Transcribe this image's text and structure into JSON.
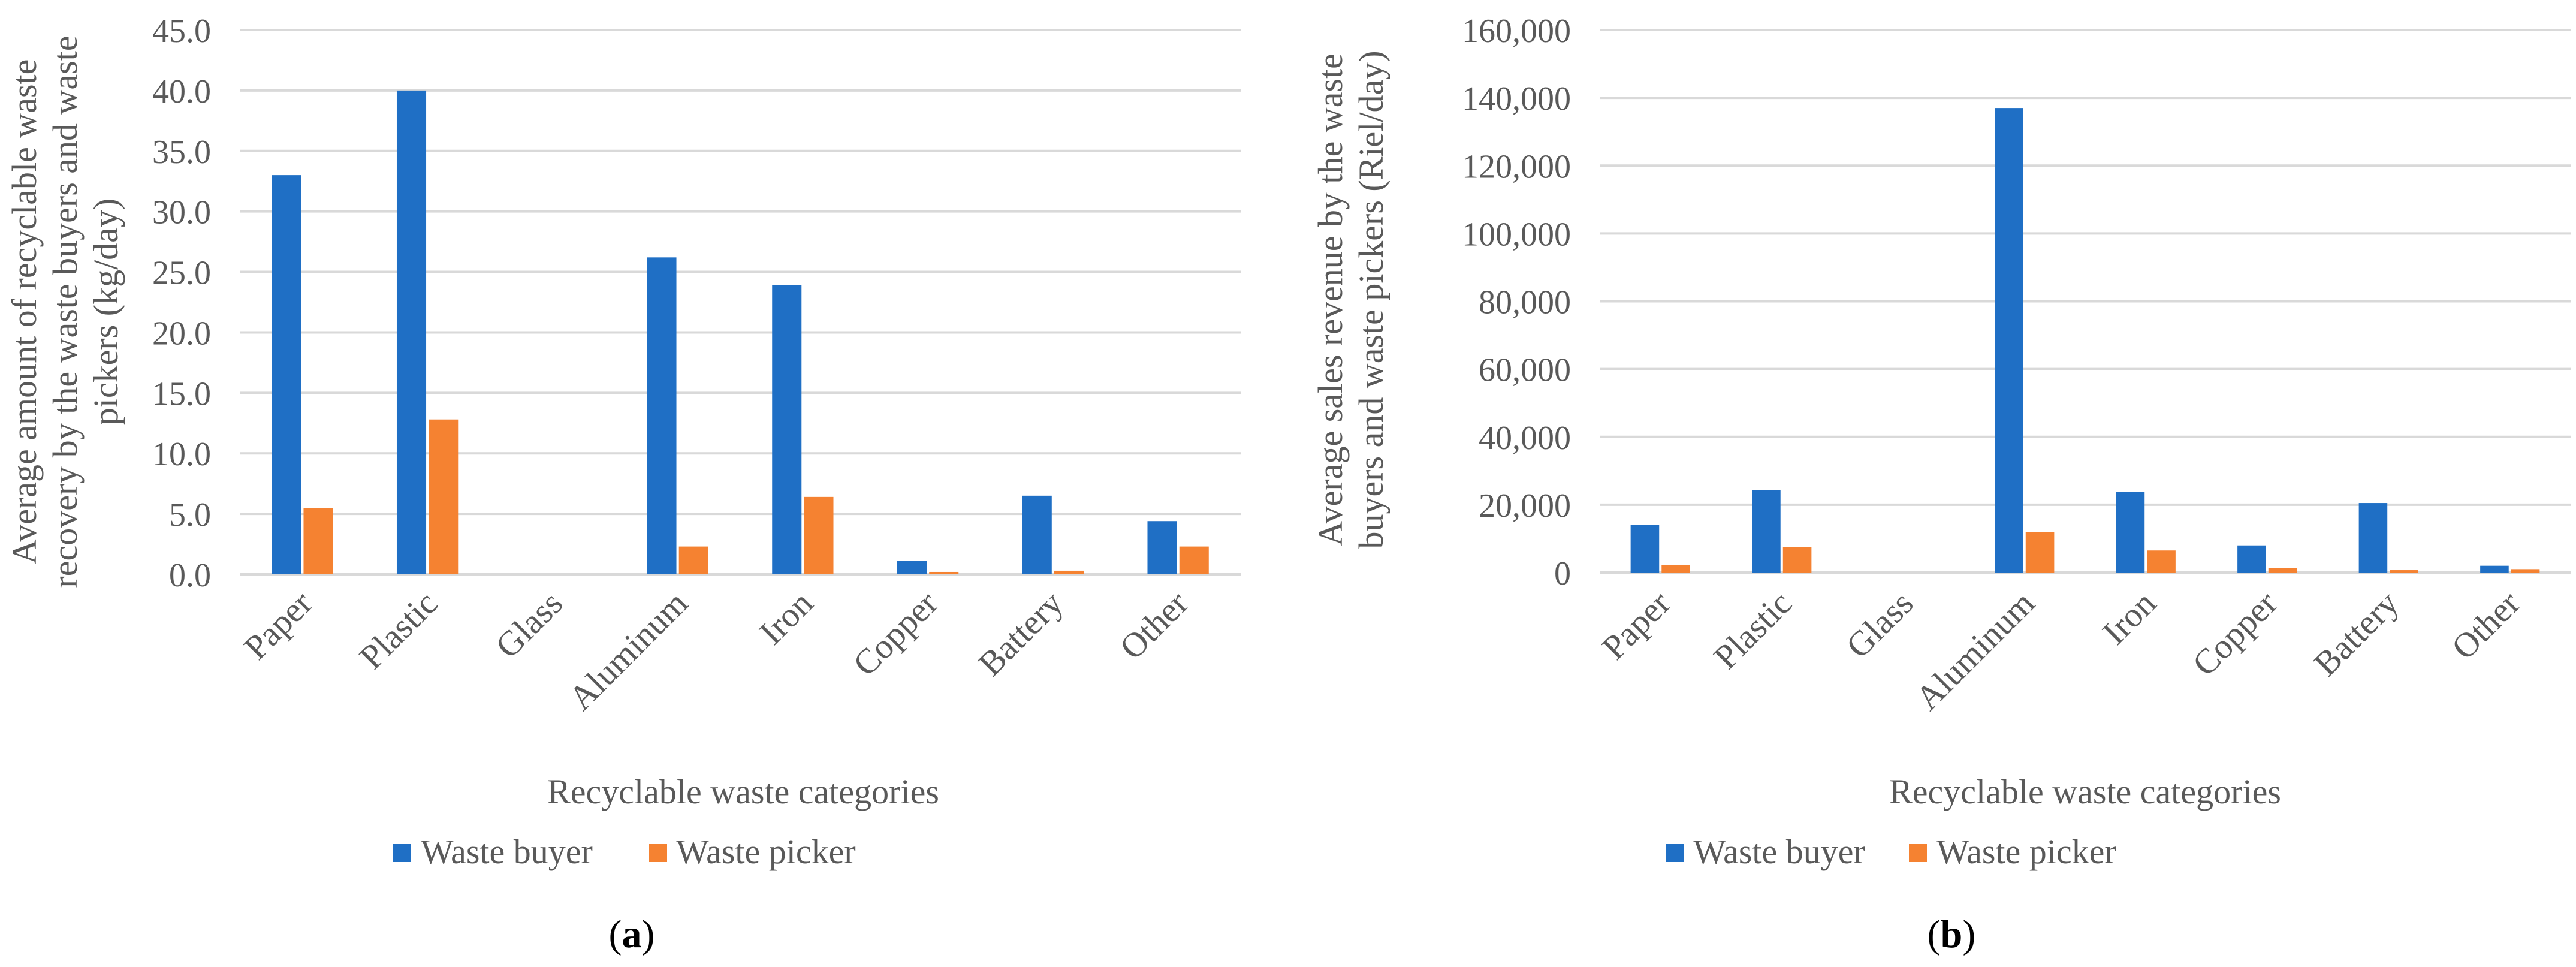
{
  "colors": {
    "buyer": "#1f6fc5",
    "picker": "#f58231"
  },
  "chart_data": [
    {
      "type": "bar",
      "panel_label": "a",
      "categories": [
        "Paper",
        "Plastic",
        "Glass",
        "Aluminum",
        "Iron",
        "Copper",
        "Battery",
        "Other"
      ],
      "series": [
        {
          "name": "Waste buyer",
          "values": [
            33.0,
            40.0,
            0,
            26.2,
            23.9,
            1.1,
            6.5,
            4.4
          ]
        },
        {
          "name": "Waste picker",
          "values": [
            5.5,
            12.8,
            0,
            2.3,
            6.4,
            0.2,
            0.3,
            2.3
          ]
        }
      ],
      "xlabel": "Recyclable waste categories",
      "ylabel_lines": [
        "Average amount of recyclable waste",
        "recovery by the waste buyers and waste",
        "pickers (kg/day)"
      ],
      "ylim": [
        0,
        45
      ],
      "yticks": [
        0,
        5,
        10,
        15,
        20,
        25,
        30,
        35,
        40,
        45
      ],
      "ytick_labels": [
        "0.0",
        "5.0",
        "10.0",
        "15.0",
        "20.0",
        "25.0",
        "30.0",
        "35.0",
        "40.0",
        "45.0"
      ],
      "legend": "bottom",
      "grid": true
    },
    {
      "type": "bar",
      "panel_label": "b",
      "categories": [
        "Paper",
        "Plastic",
        "Glass",
        "Aluminum",
        "Iron",
        "Copper",
        "Battery",
        "Other"
      ],
      "series": [
        {
          "name": "Waste buyer",
          "values": [
            14000,
            24300,
            0,
            137000,
            23800,
            8000,
            20500,
            2000
          ]
        },
        {
          "name": "Waste picker",
          "values": [
            2300,
            7500,
            0,
            12000,
            6500,
            1300,
            700,
            1000
          ]
        }
      ],
      "xlabel": "Recyclable waste categories",
      "ylabel_lines": [
        "Average sales revenue by the waste",
        "buyers and waste pickers (Riel/day)"
      ],
      "ylim": [
        0,
        160000
      ],
      "yticks": [
        0,
        20000,
        40000,
        60000,
        80000,
        100000,
        120000,
        140000,
        160000
      ],
      "ytick_labels": [
        "0",
        "20,000",
        "40,000",
        "60,000",
        "80,000",
        "100,000",
        "120,000",
        "140,000",
        "160,000"
      ],
      "legend": "bottom",
      "grid": true
    }
  ]
}
